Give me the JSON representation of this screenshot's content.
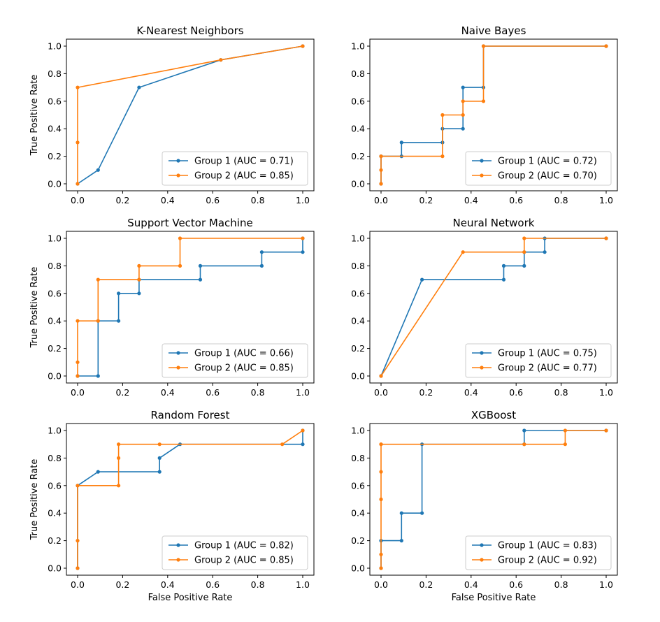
{
  "colors": {
    "group1": "#1f77b4",
    "group2": "#ff7f0e"
  },
  "chart_data": [
    {
      "type": "line",
      "title": "K-Nearest Neighbors",
      "xlabel": "",
      "ylabel": "True Positive Rate",
      "xlim": [
        0,
        1
      ],
      "ylim": [
        0,
        1
      ],
      "xticks": [
        "0.0",
        "0.2",
        "0.4",
        "0.6",
        "0.8",
        "1.0"
      ],
      "yticks": [
        "0.0",
        "0.2",
        "0.4",
        "0.6",
        "0.8",
        "1.0"
      ],
      "legend": "lower-right",
      "series": [
        {
          "name": "Group 1 (AUC = 0.71)",
          "x": [
            0,
            0.091,
            0.273,
            0.636,
            1.0
          ],
          "y": [
            0,
            0.1,
            0.7,
            0.9,
            1.0
          ]
        },
        {
          "name": "Group 2 (AUC = 0.85)",
          "x": [
            0,
            0,
            0,
            0.636,
            1.0
          ],
          "y": [
            0,
            0.3,
            0.7,
            0.9,
            1.0
          ]
        }
      ]
    },
    {
      "type": "line",
      "title": "Naive Bayes",
      "xlabel": "",
      "ylabel": "",
      "xlim": [
        0,
        1
      ],
      "ylim": [
        0,
        1
      ],
      "xticks": [
        "0.0",
        "0.2",
        "0.4",
        "0.6",
        "0.8",
        "1.0"
      ],
      "yticks": [
        "0.0",
        "0.2",
        "0.4",
        "0.6",
        "0.8",
        "1.0"
      ],
      "legend": "lower-right",
      "series": [
        {
          "name": "Group 1 (AUC = 0.72)",
          "x": [
            0,
            0,
            0.091,
            0.091,
            0.273,
            0.273,
            0.364,
            0.364,
            0.455,
            0.455,
            1.0
          ],
          "y": [
            0,
            0.2,
            0.2,
            0.3,
            0.3,
            0.4,
            0.4,
            0.7,
            0.7,
            1.0,
            1.0
          ]
        },
        {
          "name": "Group 2 (AUC = 0.70)",
          "x": [
            0,
            0,
            0,
            0.273,
            0.273,
            0.364,
            0.364,
            0.455,
            0.455,
            1.0
          ],
          "y": [
            0,
            0.1,
            0.2,
            0.2,
            0.5,
            0.5,
            0.6,
            0.6,
            1.0,
            1.0
          ]
        }
      ]
    },
    {
      "type": "line",
      "title": "Support Vector Machine",
      "xlabel": "",
      "ylabel": "True Positive Rate",
      "xlim": [
        0,
        1
      ],
      "ylim": [
        0,
        1
      ],
      "xticks": [
        "0.0",
        "0.2",
        "0.4",
        "0.6",
        "0.8",
        "1.0"
      ],
      "yticks": [
        "0.0",
        "0.2",
        "0.4",
        "0.6",
        "0.8",
        "1.0"
      ],
      "legend": "lower-right",
      "series": [
        {
          "name": "Group 1 (AUC = 0.66)",
          "x": [
            0,
            0.091,
            0.091,
            0.182,
            0.182,
            0.273,
            0.273,
            0.545,
            0.545,
            0.818,
            0.818,
            1.0,
            1.0
          ],
          "y": [
            0,
            0,
            0.4,
            0.4,
            0.6,
            0.6,
            0.7,
            0.7,
            0.8,
            0.8,
            0.9,
            0.9,
            1.0
          ]
        },
        {
          "name": "Group 2 (AUC = 0.85)",
          "x": [
            0,
            0,
            0,
            0.091,
            0.091,
            0.273,
            0.273,
            0.455,
            0.455,
            1.0
          ],
          "y": [
            0,
            0.1,
            0.4,
            0.4,
            0.7,
            0.7,
            0.8,
            0.8,
            1.0,
            1.0
          ]
        }
      ]
    },
    {
      "type": "line",
      "title": "Neural Network",
      "xlabel": "",
      "ylabel": "",
      "xlim": [
        0,
        1
      ],
      "ylim": [
        0,
        1
      ],
      "xticks": [
        "0.0",
        "0.2",
        "0.4",
        "0.6",
        "0.8",
        "1.0"
      ],
      "yticks": [
        "0.0",
        "0.2",
        "0.4",
        "0.6",
        "0.8",
        "1.0"
      ],
      "legend": "lower-right",
      "series": [
        {
          "name": "Group 1 (AUC = 0.75)",
          "x": [
            0,
            0.182,
            0.545,
            0.545,
            0.636,
            0.636,
            0.727,
            0.727,
            1.0
          ],
          "y": [
            0,
            0.7,
            0.7,
            0.8,
            0.8,
            0.9,
            0.9,
            1.0,
            1.0
          ]
        },
        {
          "name": "Group 2 (AUC = 0.77)",
          "x": [
            0,
            0.364,
            0.636,
            0.636,
            1.0
          ],
          "y": [
            0,
            0.9,
            0.9,
            1.0,
            1.0
          ]
        }
      ]
    },
    {
      "type": "line",
      "title": "Random Forest",
      "xlabel": "False Positive Rate",
      "ylabel": "True Positive Rate",
      "xlim": [
        0,
        1
      ],
      "ylim": [
        0,
        1
      ],
      "xticks": [
        "0.0",
        "0.2",
        "0.4",
        "0.6",
        "0.8",
        "1.0"
      ],
      "yticks": [
        "0.0",
        "0.2",
        "0.4",
        "0.6",
        "0.8",
        "1.0"
      ],
      "legend": "lower-right",
      "series": [
        {
          "name": "Group 1 (AUC = 0.82)",
          "x": [
            0,
            0,
            0.091,
            0.364,
            0.364,
            0.455,
            1.0,
            1.0
          ],
          "y": [
            0,
            0.6,
            0.7,
            0.7,
            0.8,
            0.9,
            0.9,
            1.0
          ]
        },
        {
          "name": "Group 2 (AUC = 0.85)",
          "x": [
            0,
            0,
            0,
            0.182,
            0.182,
            0.182,
            0.364,
            0.909,
            1.0
          ],
          "y": [
            0,
            0.2,
            0.6,
            0.6,
            0.8,
            0.9,
            0.9,
            0.9,
            1.0
          ]
        }
      ]
    },
    {
      "type": "line",
      "title": "XGBoost",
      "xlabel": "False Positive Rate",
      "ylabel": "",
      "xlim": [
        0,
        1
      ],
      "ylim": [
        0,
        1
      ],
      "xticks": [
        "0.0",
        "0.2",
        "0.4",
        "0.6",
        "0.8",
        "1.0"
      ],
      "yticks": [
        "0.0",
        "0.2",
        "0.4",
        "0.6",
        "0.8",
        "1.0"
      ],
      "legend": "lower-right",
      "series": [
        {
          "name": "Group 1 (AUC = 0.83)",
          "x": [
            0,
            0,
            0.091,
            0.091,
            0.182,
            0.182,
            0.636,
            0.636,
            1.0
          ],
          "y": [
            0,
            0.2,
            0.2,
            0.4,
            0.4,
            0.9,
            0.9,
            1.0,
            1.0
          ]
        },
        {
          "name": "Group 2 (AUC = 0.92)",
          "x": [
            0,
            0,
            0,
            0,
            0,
            0,
            0.636,
            0.818,
            0.818,
            1.0
          ],
          "y": [
            0,
            0.1,
            0.5,
            0.7,
            0.9,
            0.9,
            0.9,
            0.9,
            1.0,
            1.0
          ]
        }
      ]
    }
  ]
}
